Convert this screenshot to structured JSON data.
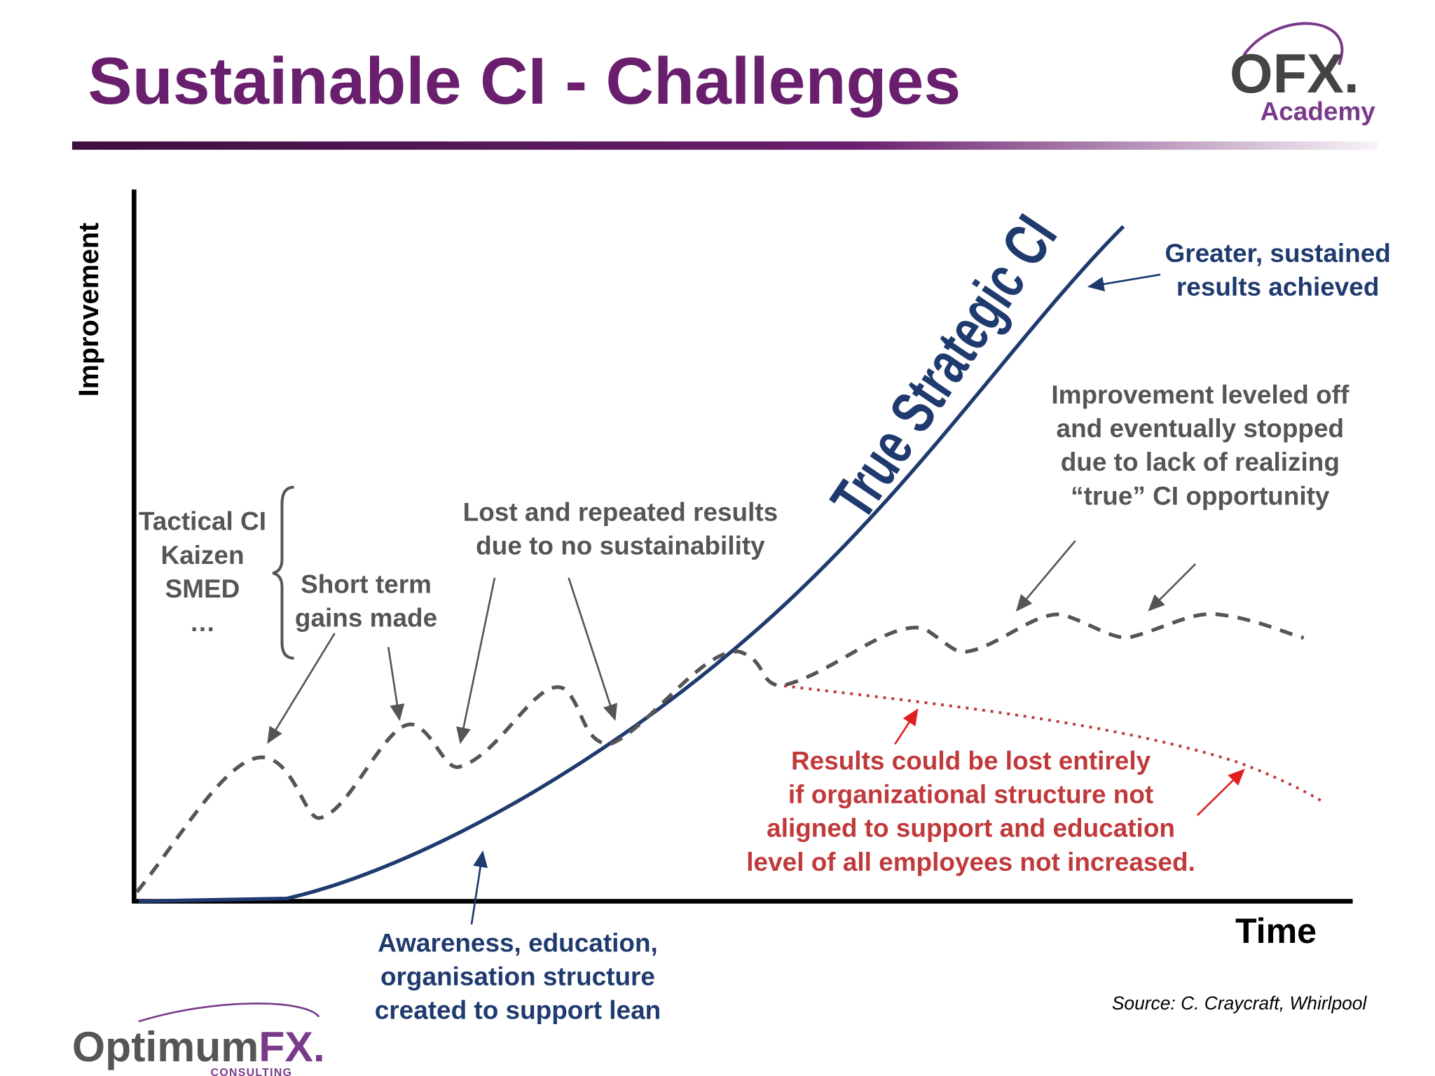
{
  "header": {
    "title": "Sustainable CI - Challenges",
    "logo_mark": "OFX.",
    "logo_sub": "Academy"
  },
  "diagram": {
    "y_axis_label": "Improvement",
    "x_axis_label": "Time",
    "curve_label": "True Strategic CI",
    "annotations": {
      "greater": [
        "Greater, sustained",
        "results achieved"
      ],
      "leveled": [
        "Improvement leveled off",
        "and eventually stopped",
        "due to lack of realizing",
        "“true” CI opportunity"
      ],
      "tactical": [
        "Tactical CI",
        "Kaizen",
        "SMED",
        "…"
      ],
      "short_term": [
        "Short term",
        "gains made"
      ],
      "lost": [
        "Lost and repeated results",
        "due to no sustainability"
      ],
      "results_lost": [
        "Results could be lost entirely",
        "if organizational structure not",
        "aligned to support and education",
        "level of all employees not increased."
      ],
      "awareness": [
        "Awareness, education,",
        "organisation structure",
        "created to support lean"
      ]
    }
  },
  "footer": {
    "source": "Source: C. Craycraft, Whirlpool",
    "brand_a": "Optimum",
    "brand_b": "FX.",
    "brand_sub": "CONSULTING"
  }
}
